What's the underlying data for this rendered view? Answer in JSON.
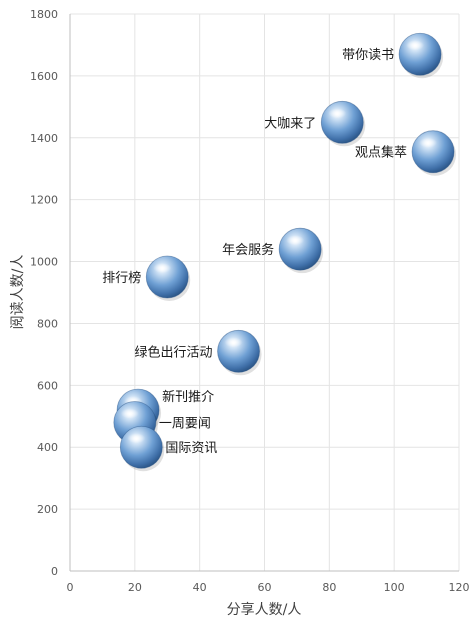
{
  "chart_data": {
    "type": "scatter",
    "title": "",
    "xlabel": "分享人数/人",
    "ylabel": "阅读人数/人",
    "xlim": [
      0,
      120
    ],
    "ylim": [
      0,
      1800
    ],
    "xticks": [
      0,
      20,
      40,
      60,
      80,
      100,
      120
    ],
    "yticks": [
      0,
      200,
      400,
      600,
      800,
      1000,
      1200,
      1400,
      1600,
      1800
    ],
    "grid": true,
    "bubble_color": "#6fa0d4",
    "points": [
      {
        "label": "带你读书",
        "x": 108,
        "y": 1670,
        "label_side": "left"
      },
      {
        "label": "大咖来了",
        "x": 84,
        "y": 1450,
        "label_side": "left"
      },
      {
        "label": "观点集萃",
        "x": 112,
        "y": 1355,
        "label_side": "left-below"
      },
      {
        "label": "年会服务",
        "x": 71,
        "y": 1040,
        "label_side": "left"
      },
      {
        "label": "排行榜",
        "x": 30,
        "y": 950,
        "label_side": "left"
      },
      {
        "label": "绿色出行活动",
        "x": 52,
        "y": 710,
        "label_side": "left"
      },
      {
        "label": "新刊推介",
        "x": 21,
        "y": 520,
        "label_side": "right-above"
      },
      {
        "label": "一周要闻",
        "x": 20,
        "y": 480,
        "label_side": "right"
      },
      {
        "label": "国际资讯",
        "x": 22,
        "y": 400,
        "label_side": "right"
      }
    ]
  }
}
